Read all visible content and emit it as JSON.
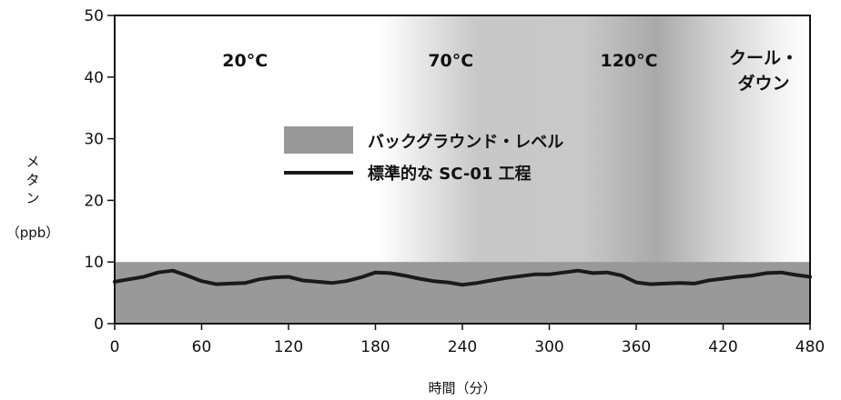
{
  "chart_data": {
    "type": "line",
    "title": "",
    "xlabel": "時間（分）",
    "ylabel_chars": [
      "メ",
      "タ",
      "ン"
    ],
    "ylabel_unit": "（ppb）",
    "xlim": [
      0,
      480
    ],
    "ylim": [
      0,
      50
    ],
    "x_ticks": [
      0,
      60,
      120,
      180,
      240,
      300,
      360,
      420,
      480
    ],
    "y_ticks": [
      0,
      10,
      20,
      30,
      40,
      50
    ],
    "grid": false,
    "legend_position": "center",
    "background_level": 10,
    "background_label": "バックグラウンド・レベル",
    "background_color": "#999999",
    "phases": [
      {
        "label_lines": [
          "20°C"
        ],
        "x_center": 90
      },
      {
        "label_lines": [
          "70°C"
        ],
        "x_center": 232
      },
      {
        "label_lines": [
          "120°C"
        ],
        "x_center": 355
      },
      {
        "label_lines": [
          "クール・",
          "ダウン"
        ],
        "x_center": 448
      }
    ],
    "series": [
      {
        "name": "標準的な SC-01 工程",
        "color": "#1a1a1a",
        "x": [
          0,
          10,
          20,
          30,
          40,
          50,
          60,
          70,
          80,
          90,
          100,
          110,
          120,
          130,
          140,
          150,
          160,
          170,
          180,
          190,
          200,
          210,
          220,
          230,
          240,
          250,
          260,
          270,
          280,
          290,
          300,
          310,
          320,
          330,
          340,
          350,
          360,
          370,
          380,
          390,
          400,
          410,
          420,
          430,
          440,
          450,
          460,
          470,
          480
        ],
        "y": [
          6.8,
          7.2,
          7.6,
          8.3,
          8.6,
          7.8,
          6.9,
          6.4,
          6.5,
          6.6,
          7.2,
          7.5,
          7.6,
          7.0,
          6.8,
          6.6,
          6.9,
          7.5,
          8.3,
          8.2,
          7.8,
          7.3,
          6.9,
          6.7,
          6.3,
          6.6,
          7.0,
          7.4,
          7.7,
          8.0,
          8.0,
          8.3,
          8.6,
          8.2,
          8.3,
          7.8,
          6.7,
          6.4,
          6.5,
          6.6,
          6.5,
          7.0,
          7.3,
          7.6,
          7.8,
          8.2,
          8.3,
          7.9,
          7.6
        ]
      }
    ]
  }
}
